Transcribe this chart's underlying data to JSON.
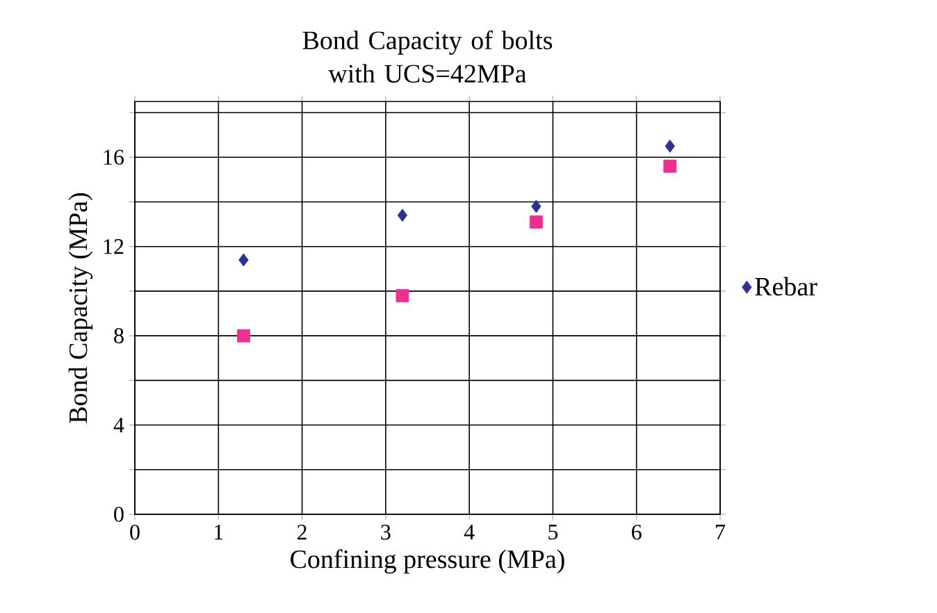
{
  "chart_data": {
    "type": "scatter",
    "title": "Bond Capacity of bolts with UCS=42MPa",
    "xlabel": "Confining pressure (MPa)",
    "ylabel": "Bond Capacity (MPa)",
    "xlim": [
      0,
      7
    ],
    "xticks": [
      0,
      1,
      2,
      3,
      4,
      5,
      6,
      7
    ],
    "ylim": [
      0,
      18.5
    ],
    "yticks": [
      0,
      {
        "value": 2,
        "label": null
      },
      4,
      {
        "value": 6,
        "label": null
      },
      8,
      {
        "value": 10,
        "label": null
      },
      12,
      {
        "value": 14,
        "label": null
      },
      16,
      {
        "value": 18,
        "label": null
      }
    ],
    "grid": true,
    "legend": "right",
    "series": [
      {
        "name": "Rebar",
        "color": "#2e3192",
        "marker": "diamond",
        "x": [
          1.3,
          3.2,
          4.8,
          6.4
        ],
        "values": [
          11.4,
          13.4,
          13.8,
          16.5
        ]
      },
      {
        "color": "#ec2f91",
        "marker": "square",
        "x": [
          1.3,
          3.2,
          4.8,
          6.4
        ],
        "values": [
          8.0,
          9.8,
          13.1,
          15.6
        ]
      }
    ]
  }
}
